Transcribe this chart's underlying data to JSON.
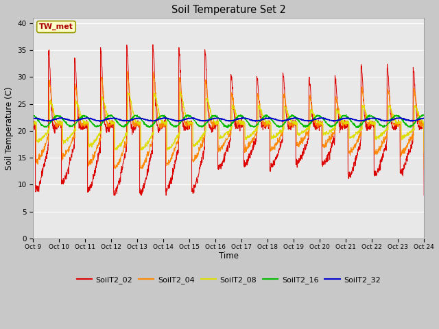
{
  "title": "Soil Temperature Set 2",
  "xlabel": "Time",
  "ylabel": "Soil Temperature (C)",
  "ylim": [
    0,
    41
  ],
  "yticks": [
    0,
    5,
    10,
    15,
    20,
    25,
    30,
    35,
    40
  ],
  "plot_bg_color": "#e8e8e8",
  "series_colors": {
    "SoilT2_02": "#dd0000",
    "SoilT2_04": "#ff8800",
    "SoilT2_08": "#dddd00",
    "SoilT2_16": "#00bb00",
    "SoilT2_32": "#0000cc"
  },
  "annotation_label": "TW_met",
  "annotation_box_color": "#ffffcc",
  "annotation_text_color": "#aa0000",
  "num_days": 15,
  "start_day": 9,
  "legend_labels": [
    "SoilT2_02",
    "SoilT2_04",
    "SoilT2_08",
    "SoilT2_16",
    "SoilT2_32"
  ],
  "xtick_labels": [
    "Oct 9",
    "Oct 10",
    "Oct 11",
    "Oct 12",
    "Oct 13",
    "Oct 14",
    "Oct 15",
    "Oct 16",
    "Oct 17",
    "Oct 18",
    "Oct 19",
    "Oct 20",
    "Oct 21",
    "Oct 22",
    "Oct 23",
    "Oct 24"
  ]
}
